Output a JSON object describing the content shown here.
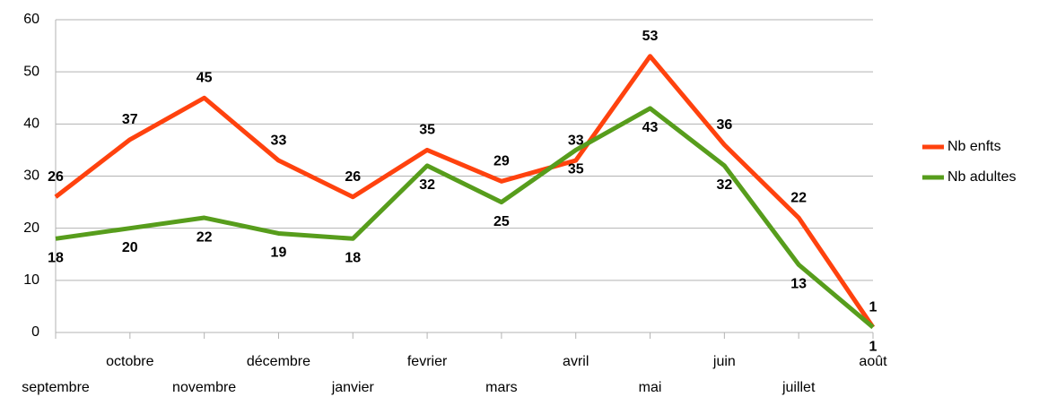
{
  "chart_data": {
    "type": "line",
    "categories": [
      "septembre",
      "octobre",
      "novembre",
      "décembre",
      "janvier",
      "fevrier",
      "mars",
      "avril",
      "mai",
      "juin",
      "juillet",
      "août"
    ],
    "series": [
      {
        "name": "Nb enfts",
        "color": "#ff420e",
        "values": [
          26,
          37,
          45,
          33,
          26,
          35,
          29,
          33,
          53,
          36,
          22,
          1
        ]
      },
      {
        "name": "Nb adultes",
        "color": "#579d1c",
        "values": [
          18,
          20,
          22,
          19,
          18,
          32,
          25,
          35,
          43,
          32,
          13,
          1
        ]
      }
    ],
    "ylim": [
      0,
      60
    ],
    "yticks": [
      0,
      10,
      20,
      30,
      40,
      50,
      60
    ],
    "grid": true,
    "legend": "right"
  }
}
